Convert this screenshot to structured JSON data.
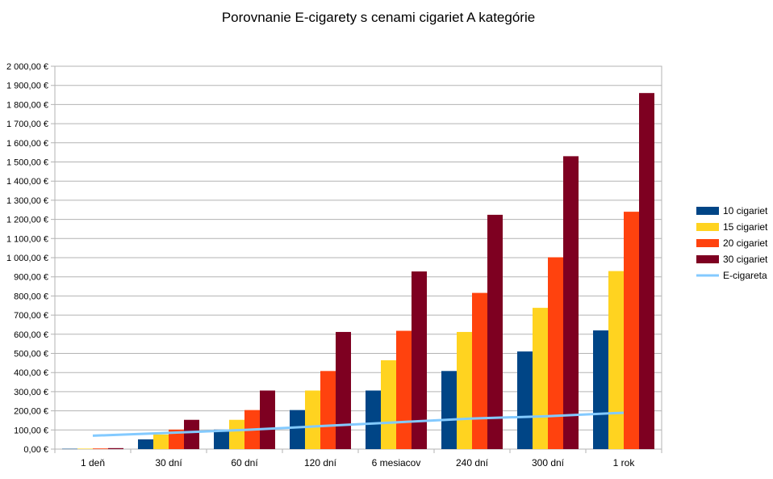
{
  "chart_data": {
    "type": "bar",
    "title": "Porovnanie E-cigarety s cenami cigariet A kategórie",
    "categories": [
      "1 deň",
      "30 dní",
      "60 dní",
      "120 dní",
      "6 mesiacov",
      "240 dní",
      "300 dní",
      "1 rok"
    ],
    "series": [
      {
        "name": "10 cigariet",
        "color": "#004586",
        "values": [
          1.7,
          51,
          102,
          204,
          306,
          408,
          510,
          620
        ]
      },
      {
        "name": "15 cigariet",
        "color": "#ffd320",
        "values": [
          2.55,
          76,
          153,
          306,
          464,
          612,
          738,
          930
        ]
      },
      {
        "name": "20 cigariet",
        "color": "#ff420e",
        "values": [
          3.4,
          102,
          204,
          408,
          618,
          816,
          1002,
          1240
        ]
      },
      {
        "name": "30 cigariet",
        "color": "#7e0021",
        "values": [
          5.1,
          153,
          306,
          612,
          928,
          1224,
          1530,
          1860
        ]
      }
    ],
    "line_series": {
      "name": "E-cigareta",
      "color": "#83caff",
      "values": [
        70,
        85,
        100,
        120,
        140,
        160,
        172,
        190
      ]
    },
    "ylim": [
      0,
      2000
    ],
    "y_step": 100,
    "y_tick_labels": [
      "0,00 €",
      "100,00 €",
      "200,00 €",
      "300,00 €",
      "400,00 €",
      "500,00 €",
      "600,00 €",
      "700,00 €",
      "800,00 €",
      "900,00 €",
      "1 000,00 €",
      "1 100,00 €",
      "1 200,00 €",
      "1 300,00 €",
      "1 400,00 €",
      "1 500,00 €",
      "1 600,00 €",
      "1 700,00 €",
      "1 800,00 €",
      "1 900,00 €",
      "2 000,00 €"
    ],
    "grid": true,
    "legend_position": "right"
  }
}
